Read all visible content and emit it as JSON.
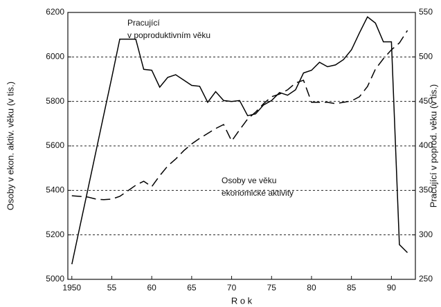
{
  "chart_data": {
    "type": "line",
    "x": [
      1950,
      1951,
      1952,
      1953,
      1954,
      1955,
      1956,
      1957,
      1958,
      1959,
      1960,
      1961,
      1962,
      1963,
      1964,
      1965,
      1966,
      1967,
      1968,
      1969,
      1970,
      1971,
      1972,
      1973,
      1974,
      1975,
      1976,
      1977,
      1978,
      1979,
      1980,
      1981,
      1982,
      1983,
      1984,
      1985,
      1986,
      1987,
      1988,
      1989,
      1990,
      1991,
      1992
    ],
    "series": [
      {
        "color": "#000000",
        "dashed": false,
        "axis": "y2",
        "values": [
          267,
          309,
          351,
          393,
          435,
          477,
          520,
          520,
          520,
          486,
          485,
          466,
          477,
          480,
          474,
          468,
          467,
          449,
          461,
          451,
          450,
          451,
          434,
          436,
          446,
          451,
          460,
          457,
          463,
          482,
          485,
          494,
          489,
          491,
          497,
          508,
          527,
          545,
          538,
          517,
          517,
          289,
          280
        ]
      },
      {
        "color": "#000000",
        "dashed": true,
        "values": [
          5376,
          5373,
          5370,
          5361,
          5358,
          5361,
          5373,
          5398,
          5423,
          5441,
          5417,
          5466,
          5510,
          5541,
          5578,
          5609,
          5634,
          5656,
          5678,
          5696,
          5622,
          5672,
          5721,
          5752,
          5790,
          5821,
          5833,
          5852,
          5883,
          5895,
          5796,
          5796,
          5796,
          5790,
          5796,
          5802,
          5821,
          5867,
          5945,
          5992,
          6032,
          6063,
          6119
        ]
      }
    ],
    "annotations": [
      "Pracující",
      "v poproduktivním věku",
      "Osoby ve věku",
      "ekonomické aktivity"
    ],
    "xlabel": "R o k",
    "ylabel": "Osoby v ekon. aktiv. věku (v tis.)",
    "y2label": "Pracující v poprod. věku (v tis.)",
    "xlim": [
      1949.5,
      1993
    ],
    "xticks": [
      1950,
      {
        "value": 1955,
        "label": "55"
      },
      {
        "value": 1960,
        "label": "60"
      },
      {
        "value": 1965,
        "label": "65"
      },
      {
        "value": 1970,
        "label": "70"
      },
      {
        "value": 1975,
        "label": "75"
      },
      {
        "value": 1980,
        "label": "80"
      },
      {
        "value": 1985,
        "label": "85"
      },
      {
        "value": 1990,
        "label": "90"
      }
    ],
    "ylim": [
      5000,
      6200
    ],
    "yticks": [
      5000,
      5200,
      5400,
      5600,
      5800,
      6000,
      6200
    ],
    "y2lim": [
      250,
      550
    ],
    "y2ticks": [
      250,
      300,
      350,
      400,
      450,
      500,
      550
    ],
    "grid": true
  }
}
